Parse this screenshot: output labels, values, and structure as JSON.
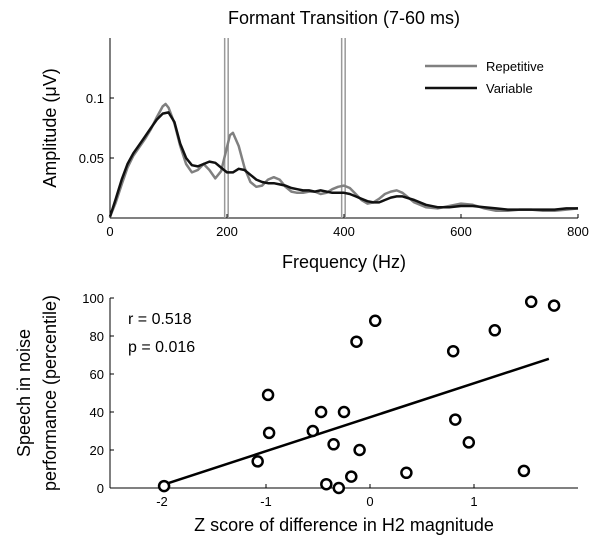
{
  "chart_data": [
    {
      "type": "line",
      "title": "Formant Transition (7-60 ms)",
      "xlabel": "Frequency (Hz)",
      "ylabel": "Amplitude (μV)",
      "xlim": [
        0,
        800
      ],
      "ylim": [
        0,
        0.15
      ],
      "x_ticks": [
        "0",
        "200",
        "400",
        "600",
        "800"
      ],
      "y_ticks": [
        "0",
        "0.05",
        "0.1"
      ],
      "grid": false,
      "legend": "top-right",
      "reference_lines_x": [
        196,
        202,
        396,
        402
      ],
      "series": [
        {
          "name": "Repetitive",
          "color": "#808080",
          "x": [
            0,
            10,
            20,
            30,
            40,
            50,
            60,
            70,
            80,
            90,
            95,
            100,
            110,
            120,
            130,
            140,
            150,
            160,
            170,
            180,
            190,
            200,
            205,
            210,
            220,
            230,
            240,
            250,
            260,
            270,
            280,
            290,
            300,
            310,
            320,
            330,
            340,
            350,
            360,
            370,
            380,
            390,
            400,
            410,
            420,
            430,
            440,
            450,
            460,
            470,
            480,
            490,
            500,
            520,
            540,
            560,
            580,
            600,
            620,
            640,
            660,
            680,
            700,
            720,
            740,
            760,
            780,
            800
          ],
          "y": [
            0.001,
            0.013,
            0.028,
            0.042,
            0.052,
            0.059,
            0.066,
            0.074,
            0.084,
            0.093,
            0.095,
            0.092,
            0.079,
            0.06,
            0.045,
            0.038,
            0.04,
            0.045,
            0.04,
            0.033,
            0.039,
            0.059,
            0.069,
            0.071,
            0.06,
            0.042,
            0.03,
            0.026,
            0.027,
            0.032,
            0.034,
            0.032,
            0.026,
            0.022,
            0.021,
            0.021,
            0.022,
            0.022,
            0.02,
            0.021,
            0.024,
            0.026,
            0.027,
            0.025,
            0.02,
            0.015,
            0.012,
            0.013,
            0.016,
            0.02,
            0.022,
            0.023,
            0.021,
            0.013,
            0.009,
            0.008,
            0.01,
            0.012,
            0.011,
            0.008,
            0.006,
            0.006,
            0.007,
            0.007,
            0.006,
            0.006,
            0.007,
            0.008
          ]
        },
        {
          "name": "Variable",
          "color": "#111111",
          "x": [
            0,
            10,
            20,
            30,
            40,
            50,
            60,
            70,
            80,
            90,
            100,
            110,
            120,
            130,
            140,
            150,
            160,
            170,
            180,
            190,
            200,
            210,
            220,
            230,
            240,
            250,
            260,
            270,
            280,
            290,
            300,
            310,
            320,
            330,
            340,
            350,
            360,
            370,
            380,
            390,
            400,
            410,
            420,
            430,
            440,
            450,
            460,
            470,
            480,
            490,
            500,
            520,
            540,
            560,
            580,
            600,
            620,
            640,
            660,
            680,
            700,
            720,
            740,
            760,
            780,
            800
          ],
          "y": [
            0.001,
            0.016,
            0.032,
            0.045,
            0.054,
            0.061,
            0.068,
            0.075,
            0.082,
            0.087,
            0.088,
            0.08,
            0.062,
            0.05,
            0.044,
            0.043,
            0.045,
            0.047,
            0.046,
            0.042,
            0.038,
            0.038,
            0.041,
            0.04,
            0.036,
            0.032,
            0.03,
            0.029,
            0.029,
            0.028,
            0.027,
            0.025,
            0.024,
            0.023,
            0.023,
            0.022,
            0.023,
            0.022,
            0.021,
            0.021,
            0.021,
            0.02,
            0.018,
            0.016,
            0.014,
            0.013,
            0.013,
            0.015,
            0.017,
            0.018,
            0.018,
            0.015,
            0.011,
            0.009,
            0.009,
            0.01,
            0.01,
            0.009,
            0.008,
            0.007,
            0.007,
            0.007,
            0.007,
            0.007,
            0.008,
            0.008
          ]
        }
      ]
    },
    {
      "type": "scatter",
      "xlabel": "Z score of difference in H2 magnitude",
      "ylabel": [
        "Speech in noise",
        "performance (percentile)"
      ],
      "xlim": [
        -2.5,
        2.0
      ],
      "ylim": [
        0,
        100
      ],
      "x_ticks": [
        "-2",
        "-1",
        "0",
        "1"
      ],
      "y_ticks": [
        "0",
        "20",
        "40",
        "60",
        "80",
        "100"
      ],
      "grid": false,
      "annotations": [
        "r = 0.518",
        "p = 0.016"
      ],
      "points": {
        "x": [
          -1.98,
          -1.08,
          -0.98,
          -0.97,
          -0.55,
          -0.47,
          -0.42,
          -0.35,
          -0.3,
          -0.25,
          -0.18,
          -0.13,
          -0.1,
          0.05,
          0.35,
          0.8,
          0.82,
          0.95,
          1.2,
          1.48,
          1.55,
          1.77
        ],
        "y": [
          1,
          14,
          49,
          29,
          30,
          40,
          2,
          23,
          0,
          40,
          6,
          77,
          20,
          88,
          8,
          72,
          36,
          24,
          83,
          9,
          98,
          96
        ]
      },
      "fit_line": {
        "x": [
          -2.0,
          1.72
        ],
        "y": [
          1.5,
          68
        ]
      }
    }
  ]
}
